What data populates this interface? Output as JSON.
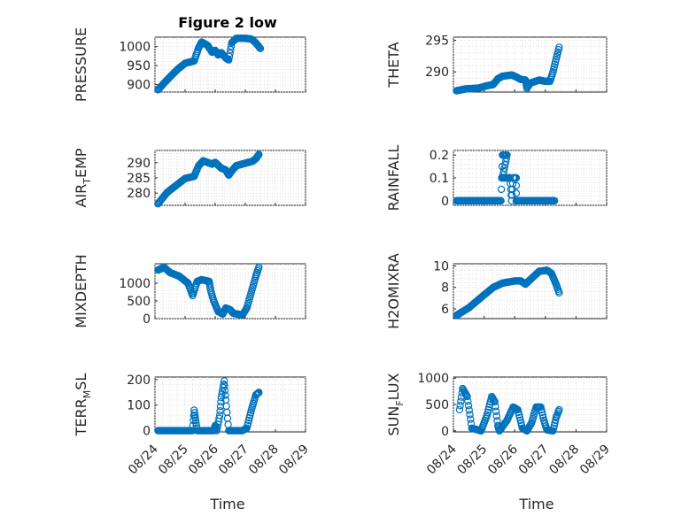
{
  "figure": {
    "title": "Figure 2 low",
    "xlabel": "Time",
    "xticks": [
      "08/24",
      "08/25",
      "08/26",
      "08/27",
      "08/28",
      "08/29"
    ],
    "marker_color": "#0072bd",
    "axis_color": "#262626"
  },
  "chart_data": [
    {
      "type": "scatter",
      "ylabel": "PRESSURE",
      "xlim": [
        0,
        5
      ],
      "ylim": [
        880,
        1025
      ],
      "yticks": [
        900,
        950,
        1000
      ],
      "grid": true,
      "knots": [
        [
          0.1,
          886
        ],
        [
          0.4,
          912
        ],
        [
          0.75,
          940
        ],
        [
          1.0,
          956
        ],
        [
          1.3,
          962
        ],
        [
          1.45,
          997
        ],
        [
          1.55,
          1012
        ],
        [
          1.75,
          1003
        ],
        [
          1.9,
          985
        ],
        [
          2.0,
          990
        ],
        [
          2.1,
          978
        ],
        [
          2.2,
          984
        ],
        [
          2.35,
          970
        ],
        [
          2.45,
          965
        ],
        [
          2.55,
          1010
        ],
        [
          2.7,
          1022
        ],
        [
          3.0,
          1022
        ],
        [
          3.2,
          1020
        ],
        [
          3.35,
          1010
        ],
        [
          3.5,
          995
        ]
      ]
    },
    {
      "type": "scatter",
      "ylabel": "THETA",
      "xlim": [
        0,
        5
      ],
      "ylim": [
        286.8,
        295.5
      ],
      "yticks": [
        290,
        295
      ],
      "grid": true,
      "knots": [
        [
          0.1,
          287.0
        ],
        [
          0.4,
          287.3
        ],
        [
          0.8,
          287.4
        ],
        [
          1.1,
          287.8
        ],
        [
          1.3,
          288.0
        ],
        [
          1.45,
          288.9
        ],
        [
          1.6,
          289.3
        ],
        [
          1.9,
          289.5
        ],
        [
          2.0,
          289.3
        ],
        [
          2.2,
          288.8
        ],
        [
          2.35,
          288.7
        ],
        [
          2.4,
          287.4
        ],
        [
          2.5,
          288.2
        ],
        [
          2.8,
          288.7
        ],
        [
          3.0,
          288.5
        ],
        [
          3.15,
          288.5
        ],
        [
          3.25,
          290.0
        ],
        [
          3.35,
          292.0
        ],
        [
          3.45,
          293.9
        ]
      ]
    },
    {
      "type": "scatter",
      "ylabel": "AIR_TEMP",
      "xlim": [
        0,
        5
      ],
      "ylim": [
        276,
        294
      ],
      "yticks": [
        280,
        285,
        290
      ],
      "grid": true,
      "knots": [
        [
          0.1,
          276.5
        ],
        [
          0.4,
          280.2
        ],
        [
          0.7,
          282.5
        ],
        [
          1.0,
          284.8
        ],
        [
          1.3,
          285.5
        ],
        [
          1.45,
          289.0
        ],
        [
          1.6,
          290.6
        ],
        [
          1.9,
          289.5
        ],
        [
          2.0,
          290.1
        ],
        [
          2.2,
          288.2
        ],
        [
          2.35,
          287.6
        ],
        [
          2.45,
          285.9
        ],
        [
          2.55,
          287.3
        ],
        [
          2.7,
          289.0
        ],
        [
          3.0,
          289.8
        ],
        [
          3.25,
          290.5
        ],
        [
          3.35,
          291.3
        ],
        [
          3.45,
          292.7
        ]
      ]
    },
    {
      "type": "scatter",
      "ylabel": "RAINFALL",
      "xlim": [
        0,
        5
      ],
      "ylim": [
        -0.02,
        0.22
      ],
      "yticks": [
        0,
        0.1,
        0.2
      ],
      "grid": true,
      "knots": [
        [
          0.1,
          0
        ],
        [
          1.55,
          0
        ],
        [
          1.6,
          0.2
        ],
        [
          1.75,
          0.2
        ],
        [
          1.6,
          0.1
        ],
        [
          1.75,
          0.1
        ],
        [
          1.85,
          0.1
        ],
        [
          1.9,
          0
        ],
        [
          1.95,
          0.1
        ],
        [
          2.05,
          0.1
        ],
        [
          2.05,
          0
        ],
        [
          3.3,
          0
        ]
      ]
    },
    {
      "type": "scatter",
      "ylabel": "MIXDEPTH",
      "xlim": [
        0,
        5
      ],
      "ylim": [
        0,
        1550
      ],
      "yticks": [
        0,
        500,
        1000
      ],
      "grid": true,
      "knots": [
        [
          0.1,
          1370
        ],
        [
          0.3,
          1450
        ],
        [
          0.5,
          1300
        ],
        [
          0.8,
          1200
        ],
        [
          1.1,
          1000
        ],
        [
          1.25,
          650
        ],
        [
          1.4,
          1050
        ],
        [
          1.55,
          1100
        ],
        [
          1.8,
          1050
        ],
        [
          1.85,
          800
        ],
        [
          1.95,
          500
        ],
        [
          2.1,
          200
        ],
        [
          2.25,
          130
        ],
        [
          2.35,
          300
        ],
        [
          2.5,
          250
        ],
        [
          2.6,
          150
        ],
        [
          2.9,
          100
        ],
        [
          3.05,
          300
        ],
        [
          3.2,
          750
        ],
        [
          3.35,
          1200
        ],
        [
          3.45,
          1450
        ]
      ]
    },
    {
      "type": "scatter",
      "ylabel": "H2OMIXRA",
      "xlim": [
        0,
        5
      ],
      "ylim": [
        5.1,
        10.2
      ],
      "yticks": [
        6,
        8,
        10
      ],
      "grid": true,
      "knots": [
        [
          0.1,
          5.4
        ],
        [
          0.5,
          6.1
        ],
        [
          1.0,
          7.3
        ],
        [
          1.3,
          8.0
        ],
        [
          1.6,
          8.4
        ],
        [
          2.0,
          8.6
        ],
        [
          2.2,
          8.6
        ],
        [
          2.35,
          8.3
        ],
        [
          2.5,
          8.7
        ],
        [
          2.8,
          9.5
        ],
        [
          3.05,
          9.6
        ],
        [
          3.2,
          9.3
        ],
        [
          3.35,
          8.3
        ],
        [
          3.45,
          7.5
        ]
      ]
    },
    {
      "type": "scatter",
      "ylabel": "TERR_MSL",
      "xlim": [
        0,
        5
      ],
      "ylim": [
        -5,
        210
      ],
      "yticks": [
        0,
        100,
        200
      ],
      "grid": true,
      "knots": [
        [
          0.1,
          0
        ],
        [
          1.25,
          0
        ],
        [
          1.3,
          80
        ],
        [
          1.35,
          40
        ],
        [
          1.4,
          0
        ],
        [
          1.95,
          0
        ],
        [
          2.0,
          20
        ],
        [
          2.05,
          0
        ],
        [
          2.15,
          60
        ],
        [
          2.2,
          130
        ],
        [
          2.3,
          195
        ],
        [
          2.35,
          120
        ],
        [
          2.45,
          0
        ],
        [
          2.9,
          0
        ],
        [
          3.05,
          10
        ],
        [
          3.2,
          80
        ],
        [
          3.35,
          140
        ],
        [
          3.45,
          150
        ]
      ]
    },
    {
      "type": "scatter",
      "ylabel": "SUN_FLUX",
      "xlim": [
        0,
        5
      ],
      "ylim": [
        -20,
        1020
      ],
      "yticks": [
        0,
        500,
        1000
      ],
      "grid": true,
      "knots": [
        [
          0.2,
          400
        ],
        [
          0.3,
          800
        ],
        [
          0.45,
          650
        ],
        [
          0.6,
          50
        ],
        [
          0.9,
          0
        ],
        [
          1.1,
          300
        ],
        [
          1.25,
          650
        ],
        [
          1.35,
          550
        ],
        [
          1.45,
          100
        ],
        [
          1.5,
          0
        ],
        [
          1.75,
          200
        ],
        [
          1.95,
          450
        ],
        [
          2.1,
          400
        ],
        [
          2.25,
          50
        ],
        [
          2.4,
          0
        ],
        [
          2.55,
          150
        ],
        [
          2.7,
          450
        ],
        [
          2.85,
          450
        ],
        [
          2.95,
          200
        ],
        [
          3.05,
          20
        ],
        [
          3.25,
          0
        ],
        [
          3.35,
          250
        ],
        [
          3.45,
          400
        ]
      ]
    }
  ]
}
